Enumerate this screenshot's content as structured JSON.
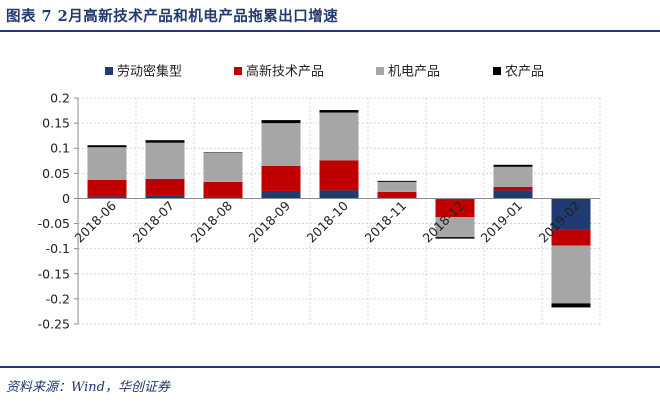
{
  "figure": {
    "title": "图表 7   2月高新技术产品和机电产品拖累出口增速",
    "source": "资料来源：Wind，华创证券"
  },
  "chart_data": {
    "type": "bar",
    "stacked": true,
    "title": "",
    "xlabel": "",
    "ylabel": "",
    "categories": [
      "2018-06",
      "2018-07",
      "2018-08",
      "2018-09",
      "2018-10",
      "2018-11",
      "2018-12",
      "2019-01",
      "2019-02"
    ],
    "ylim": [
      -0.25,
      0.2
    ],
    "yticks": [
      0.2,
      0.15,
      0.1,
      0.05,
      0,
      -0.05,
      -0.1,
      -0.15,
      -0.2,
      -0.25
    ],
    "ytick_labels": [
      "0.2",
      "0.15",
      "0.1",
      "0.05",
      "0",
      "-0.05",
      "-0.1",
      "-0.15",
      "-0.2",
      "-0.25"
    ],
    "grid": true,
    "legend_position": "top",
    "series": [
      {
        "name": "劳动密集型",
        "color": "#1f3b73",
        "values": [
          0.004,
          0.006,
          0.003,
          0.015,
          0.016,
          0.002,
          -0.002,
          0.016,
          -0.062
        ]
      },
      {
        "name": "高新技术产品",
        "color": "#c00000",
        "values": [
          0.033,
          0.033,
          0.03,
          0.05,
          0.06,
          0.011,
          -0.035,
          0.007,
          -0.032
        ]
      },
      {
        "name": "机电产品",
        "color": "#a6a6a6",
        "values": [
          0.065,
          0.072,
          0.058,
          0.085,
          0.095,
          0.02,
          -0.04,
          0.04,
          -0.115
        ]
      },
      {
        "name": "农产品",
        "color": "#000000",
        "values": [
          0.004,
          0.005,
          0.001,
          0.006,
          0.005,
          0.002,
          -0.003,
          0.004,
          -0.008
        ]
      }
    ]
  }
}
